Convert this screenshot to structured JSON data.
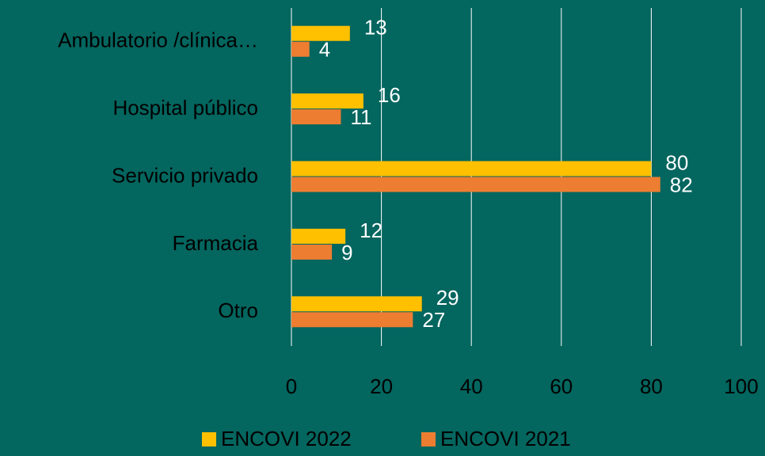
{
  "chart_data": {
    "type": "bar",
    "orientation": "horizontal",
    "categories": [
      "Ambulatorio /clínica…",
      "Hospital público",
      "Servicio privado",
      "Farmacia",
      "Otro"
    ],
    "series": [
      {
        "name": "ENCOVI 2022",
        "color": "#ffc000",
        "values": [
          13,
          16,
          80,
          12,
          29
        ]
      },
      {
        "name": "ENCOVI 2021",
        "color": "#ed7d31",
        "values": [
          4,
          11,
          82,
          9,
          27
        ]
      }
    ],
    "xlim": [
      0,
      100
    ],
    "xticks": [
      0,
      20,
      40,
      60,
      80,
      100
    ],
    "grid": true,
    "legend": "bottom"
  }
}
